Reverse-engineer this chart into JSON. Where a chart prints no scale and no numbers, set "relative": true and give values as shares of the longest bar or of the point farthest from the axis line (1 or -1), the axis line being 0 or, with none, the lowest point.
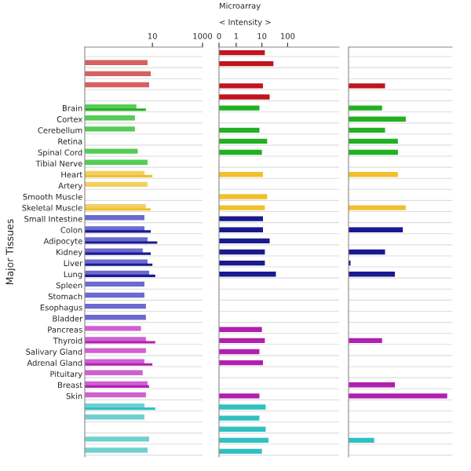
{
  "chart_data": [
    {
      "type": "bar",
      "orientation": "horizontal",
      "ylabel": "Major Tissues",
      "log": "x",
      "xlim": [
        0.02,
        1000
      ],
      "xticks": [
        10,
        1000
      ],
      "grid": "y",
      "categories": [
        null,
        null,
        null,
        null,
        null,
        "Brain",
        "Cortex",
        "Cerebellum",
        "Retina",
        "Spinal Cord",
        "Tibial Nerve",
        "Heart",
        "Artery",
        "Smooth Muscle",
        "Skeletal Muscle",
        "Small Intestine",
        "Colon",
        "Adipocyte",
        "Kidney",
        "Liver",
        "Lung",
        "Spleen",
        "Stomach",
        "Esophagus",
        "Bladder",
        "Pancreas",
        "Thyroid",
        "Salivary Gland",
        "Adrenal Gland",
        "Pituitary",
        "Breast",
        "Skin",
        null,
        null,
        null,
        null,
        null
      ],
      "series": [
        {
          "colors": [
            "#d86060",
            "#d86060",
            "#d86060",
            "#d86060",
            "#d86060",
            "#55cc55",
            "#55cc55",
            "#55cc55",
            "#55cc55",
            "#55cc55",
            "#55cc55",
            "#f2d060",
            "#f2d060",
            "#f2d060",
            "#f2d060",
            "#6a6ad0",
            "#6a6ad0",
            "#6a6ad0",
            "#6a6ad0",
            "#6a6ad0",
            "#6a6ad0",
            "#6a6ad0",
            "#6a6ad0",
            "#6a6ad0",
            "#6a6ad0",
            "#d060d0",
            "#d060d0",
            "#d060d0",
            "#d060d0",
            "#d060d0",
            "#d060d0",
            "#d060d0",
            "#70d0d0",
            "#70d0d0",
            "#70d0d0",
            "#70d0d0",
            "#70d0d0"
          ],
          "values": [
            null,
            6.4,
            8.6,
            7.4,
            null,
            2.3,
            2,
            2,
            null,
            2.6,
            6.4,
            4.8,
            6.4,
            null,
            5.5,
            4.8,
            4.8,
            6.4,
            4.1,
            6.4,
            7.4,
            4.8,
            4.8,
            5.5,
            5.5,
            3.5,
            5.5,
            5.5,
            4.8,
            4.1,
            6.4,
            5.5,
            4.8,
            4.8,
            null,
            7.4,
            6.4
          ]
        },
        {
          "colors": [
            "#c0141e",
            "#c0141e",
            "#c0141e",
            "#c0141e",
            "#c0141e",
            "#22b022",
            "#22b022",
            "#22b022",
            "#22b022",
            "#22b022",
            "#22b022",
            "#f0c030",
            "#f0c030",
            "#f0c030",
            "#f0c030",
            "#1a1a90",
            "#1a1a90",
            "#1a1a90",
            "#1a1a90",
            "#1a1a90",
            "#1a1a90",
            "#1a1a90",
            "#1a1a90",
            "#1a1a90",
            "#1a1a90",
            "#b020b0",
            "#b020b0",
            "#b020b0",
            "#b020b0",
            "#b020b0",
            "#b020b0",
            "#b020b0",
            "#30c0c0",
            "#30c0c0",
            "#30c0c0",
            "#30c0c0",
            "#30c0c0"
          ],
          "values": [
            null,
            null,
            null,
            null,
            null,
            5.5,
            null,
            null,
            null,
            null,
            null,
            10,
            null,
            null,
            8.6,
            null,
            8.6,
            15.6,
            8.6,
            10,
            13,
            null,
            null,
            null,
            null,
            null,
            13,
            null,
            10,
            null,
            7.4,
            null,
            13,
            null,
            null,
            null,
            null
          ]
        }
      ]
    },
    {
      "type": "bar",
      "orientation": "horizontal",
      "title": "Microarray",
      "subtitle": "< Intensity >",
      "log": "x",
      "xlim": [
        0,
        10000
      ],
      "xticks": [
        0,
        1,
        10,
        100
      ],
      "grid": "y",
      "tick_labels": "x",
      "categories": [
        null,
        null,
        null,
        null,
        null,
        null,
        null,
        null,
        null,
        null,
        null,
        null,
        null,
        null,
        null,
        null,
        null,
        null,
        null,
        null,
        null,
        null,
        null,
        null,
        null,
        null,
        null,
        null,
        null,
        null,
        null,
        null,
        null,
        null,
        null,
        null,
        null
      ],
      "colors": [
        "#c0141e",
        "#c0141e",
        "#c0141e",
        "#c0141e",
        "#c0141e",
        "#22b022",
        "#22b022",
        "#22b022",
        "#22b022",
        "#22b022",
        "#22b022",
        "#f0c030",
        "#f0c030",
        "#f0c030",
        "#f0c030",
        "#1a1a90",
        "#1a1a90",
        "#1a1a90",
        "#1a1a90",
        "#1a1a90",
        "#1a1a90",
        "#1a1a90",
        "#1a1a90",
        "#1a1a90",
        "#1a1a90",
        "#b020b0",
        "#b020b0",
        "#b020b0",
        "#b020b0",
        "#b020b0",
        "#b020b0",
        "#b020b0",
        "#30c0c0",
        "#30c0c0",
        "#30c0c0",
        "#30c0c0",
        "#30c0c0"
      ],
      "values": [
        13,
        28,
        null,
        11,
        20,
        8,
        null,
        8,
        16,
        10,
        null,
        11,
        null,
        16,
        13,
        11,
        11,
        20,
        13,
        13,
        35,
        null,
        null,
        null,
        null,
        10,
        13,
        8,
        11,
        null,
        null,
        8,
        14,
        8,
        14,
        18,
        10
      ]
    },
    {
      "type": "bar",
      "orientation": "horizontal",
      "relative": true,
      "grid": "y",
      "tick_labels": false,
      "categories": [
        null,
        null,
        null,
        null,
        null,
        null,
        null,
        null,
        null,
        null,
        null,
        null,
        null,
        null,
        null,
        null,
        null,
        null,
        null,
        null,
        null,
        null,
        null,
        null,
        null,
        null,
        null,
        null,
        null,
        null,
        null,
        null,
        null,
        null,
        null,
        null,
        null
      ],
      "colors": [
        "#c0141e",
        "#c0141e",
        "#c0141e",
        "#c0141e",
        "#c0141e",
        "#22b022",
        "#22b022",
        "#22b022",
        "#22b022",
        "#22b022",
        "#22b022",
        "#f0c030",
        "#f0c030",
        "#f0c030",
        "#f0c030",
        "#1a1a90",
        "#1a1a90",
        "#1a1a90",
        "#1a1a90",
        "#1a1a90",
        "#1a1a90",
        "#1a1a90",
        "#1a1a90",
        "#1a1a90",
        "#1a1a90",
        "#b020b0",
        "#b020b0",
        "#b020b0",
        "#b020b0",
        "#b020b0",
        "#b020b0",
        "#b020b0",
        "#30c0c0",
        "#30c0c0",
        "#30c0c0",
        "#30c0c0",
        "#30c0c0"
      ],
      "values": [
        null,
        null,
        null,
        0.37,
        null,
        0.34,
        0.58,
        0.37,
        0.5,
        0.5,
        null,
        0.5,
        null,
        null,
        0.58,
        null,
        0.55,
        null,
        0.37,
        0.02,
        0.47,
        null,
        null,
        null,
        null,
        null,
        0.34,
        null,
        null,
        null,
        0.47,
        1,
        null,
        null,
        null,
        0.26,
        null
      ]
    }
  ]
}
